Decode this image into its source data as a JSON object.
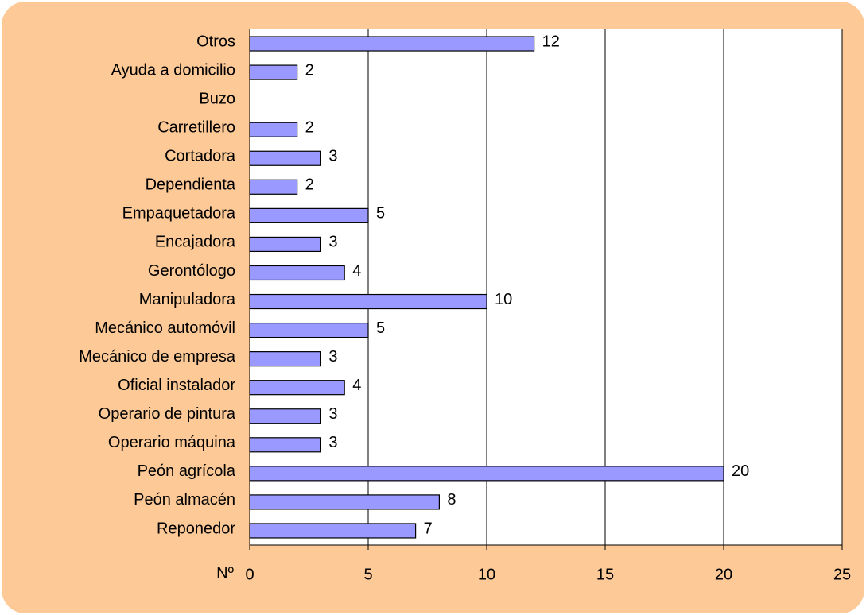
{
  "chart_data": {
    "type": "hbar",
    "categories": [
      "Otros",
      "Ayuda a domicilio",
      "Buzo",
      "Carretillero",
      "Cortadora",
      "Dependienta",
      "Empaquetadora",
      "Encajadora",
      "Gerontólogo",
      "Manipuladora",
      "Mecánico automóvil",
      "Mecánico de empresa",
      "Oficial instalador",
      "Operario de pintura",
      "Operario máquina",
      "Peón agrícola",
      "Peón almacén",
      "Reponedor"
    ],
    "values": [
      12,
      2,
      null,
      2,
      3,
      2,
      5,
      3,
      4,
      10,
      5,
      3,
      4,
      3,
      3,
      20,
      8,
      7
    ],
    "color": "#9999ff",
    "xlabel": "Nº",
    "xlim": [
      0,
      25
    ],
    "xticks": [
      0,
      5,
      10,
      15,
      20,
      25
    ],
    "grid": true
  }
}
